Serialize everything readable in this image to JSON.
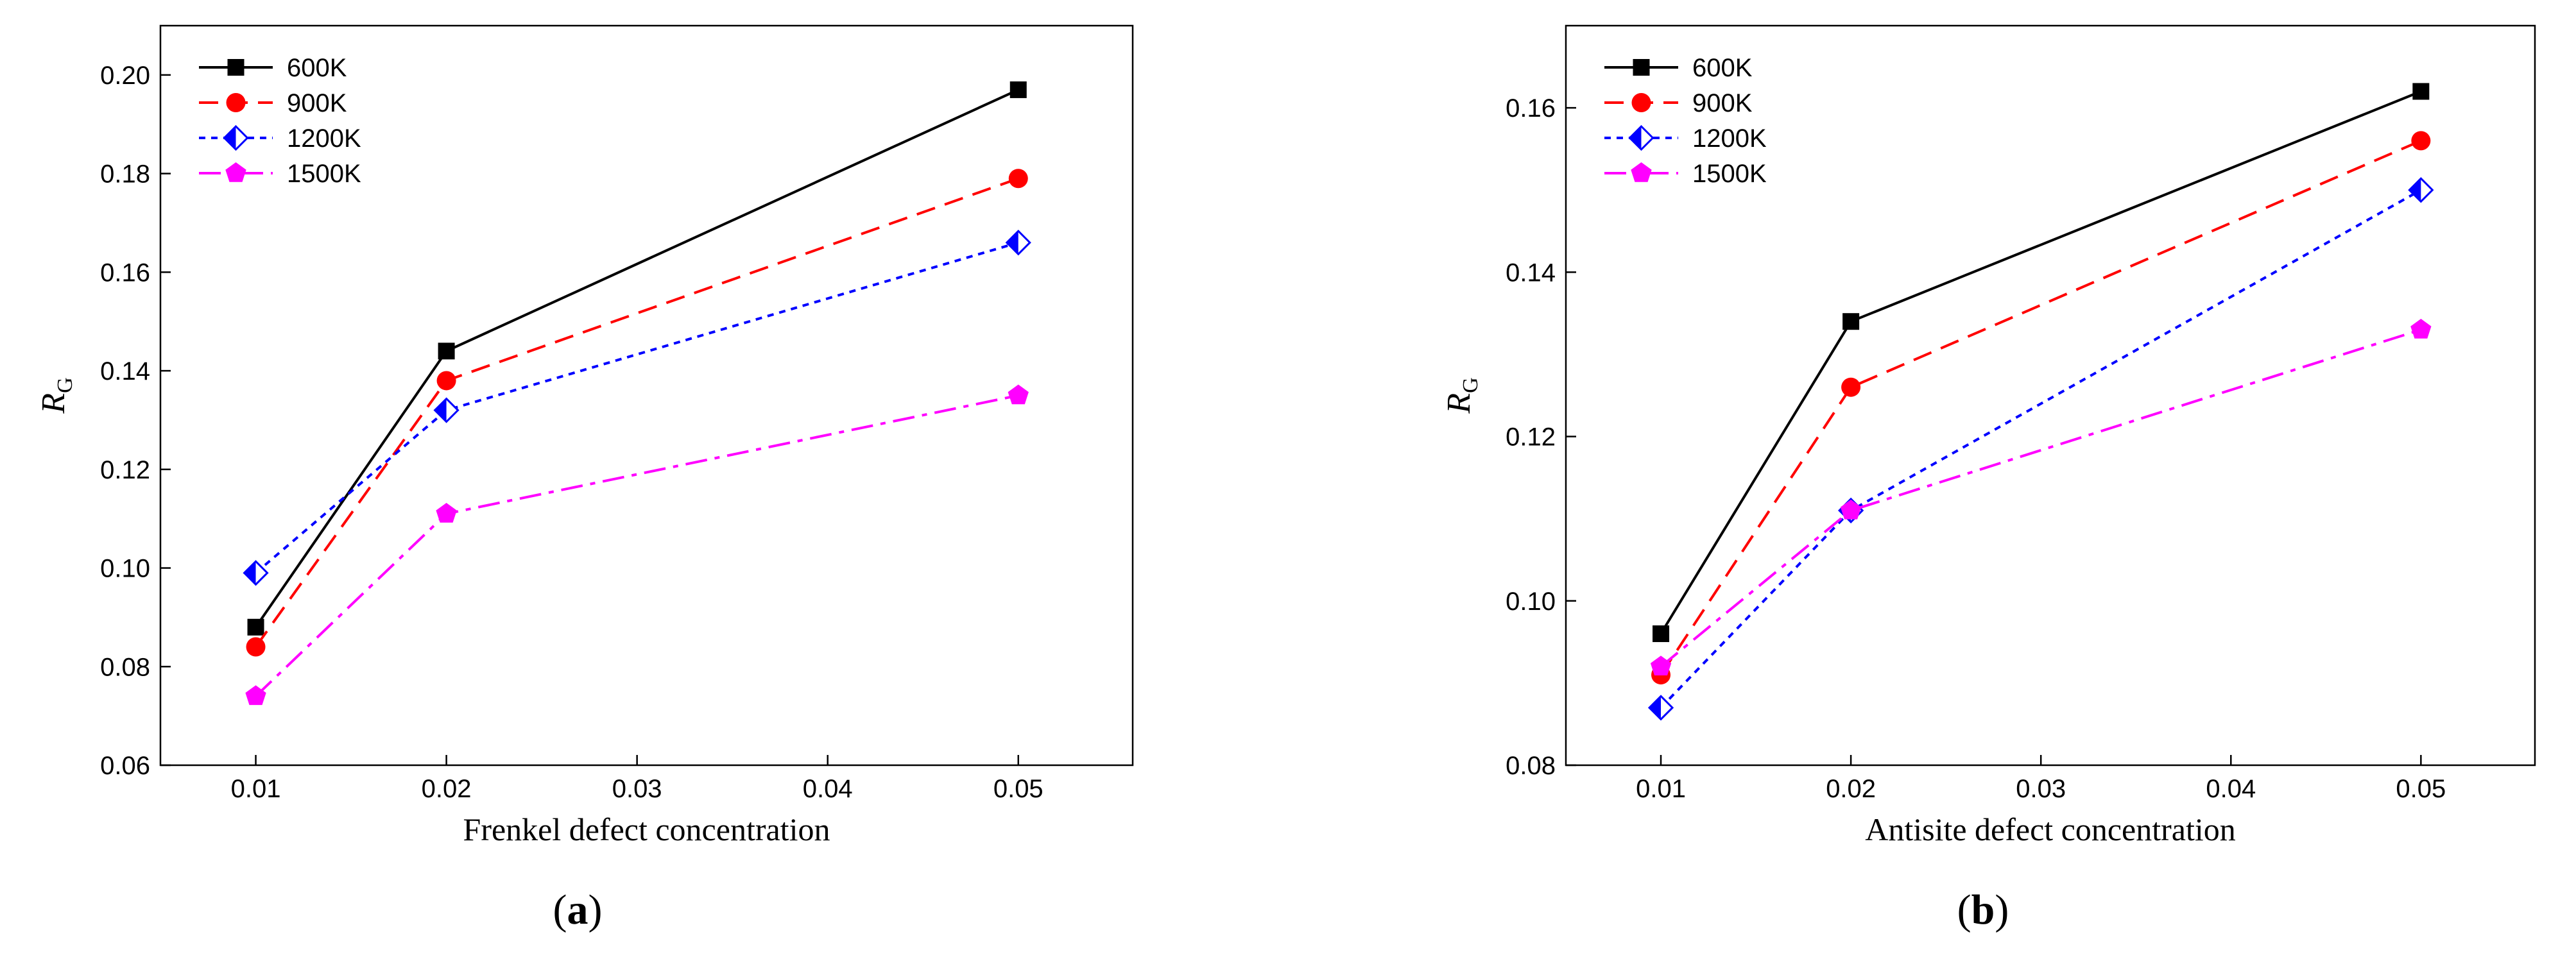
{
  "chart_data": [
    {
      "type": "line",
      "panel_label": "a",
      "xlabel": "Frenkel defect concentration",
      "ylabel": "R",
      "ylabel_sub": "G",
      "x": [
        0.01,
        0.02,
        0.05
      ],
      "xlim": [
        0.005,
        0.056
      ],
      "ylim": [
        0.06,
        0.21
      ],
      "xticks": [
        "0.01",
        "0.02",
        "0.03",
        "0.04",
        "0.05"
      ],
      "xtick_values": [
        0.01,
        0.02,
        0.03,
        0.04,
        0.05
      ],
      "yticks": [
        "0.06",
        "0.08",
        "0.10",
        "0.12",
        "0.14",
        "0.16",
        "0.18",
        "0.20"
      ],
      "ytick_values": [
        0.06,
        0.08,
        0.1,
        0.12,
        0.14,
        0.16,
        0.18,
        0.2
      ],
      "grid": false,
      "legend_position": "top-left",
      "series": [
        {
          "name": "600K",
          "values": [
            0.088,
            0.144,
            0.197
          ],
          "color": "#000000",
          "marker": "square",
          "dash": "solid"
        },
        {
          "name": "900K",
          "values": [
            0.084,
            0.138,
            0.179
          ],
          "color": "#ff0000",
          "marker": "circle",
          "dash": "dash"
        },
        {
          "name": "1200K",
          "values": [
            0.099,
            0.132,
            0.166
          ],
          "color": "#0000ff",
          "marker": "diamond-half",
          "dash": "dot"
        },
        {
          "name": "1500K",
          "values": [
            0.074,
            0.111,
            0.135
          ],
          "color": "#ff00ff",
          "marker": "pentagon",
          "dash": "dashdot"
        }
      ]
    },
    {
      "type": "line",
      "panel_label": "b",
      "xlabel": "Antisite defect concentration",
      "ylabel": "R",
      "ylabel_sub": "G",
      "x": [
        0.01,
        0.02,
        0.05
      ],
      "xlim": [
        0.005,
        0.056
      ],
      "ylim": [
        0.08,
        0.17
      ],
      "xticks": [
        "0.01",
        "0.02",
        "0.03",
        "0.04",
        "0.05"
      ],
      "xtick_values": [
        0.01,
        0.02,
        0.03,
        0.04,
        0.05
      ],
      "yticks": [
        "0.08",
        "0.10",
        "0.12",
        "0.14",
        "0.16"
      ],
      "ytick_values": [
        0.08,
        0.1,
        0.12,
        0.14,
        0.16
      ],
      "grid": false,
      "legend_position": "top-left",
      "series": [
        {
          "name": "600K",
          "values": [
            0.096,
            0.134,
            0.162
          ],
          "color": "#000000",
          "marker": "square",
          "dash": "solid"
        },
        {
          "name": "900K",
          "values": [
            0.091,
            0.126,
            0.156
          ],
          "color": "#ff0000",
          "marker": "circle",
          "dash": "dash"
        },
        {
          "name": "1200K",
          "values": [
            0.087,
            0.111,
            0.15
          ],
          "color": "#0000ff",
          "marker": "diamond-half",
          "dash": "dot"
        },
        {
          "name": "1500K",
          "values": [
            0.092,
            0.111,
            0.133
          ],
          "color": "#ff00ff",
          "marker": "pentagon",
          "dash": "dashdot"
        }
      ]
    }
  ]
}
